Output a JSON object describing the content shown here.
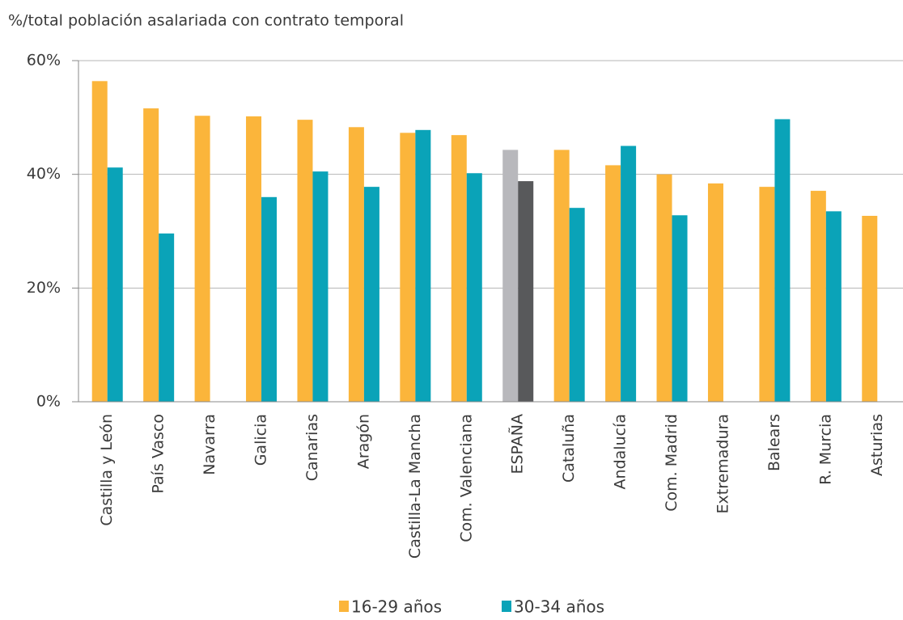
{
  "chart_data": {
    "type": "bar",
    "y_label": "%/total población asalariada con contrato temporal",
    "categories": [
      "Castilla y León",
      "País Vasco",
      "Navarra",
      "Galicia",
      "Canarias",
      "Aragón",
      "Castilla-La Mancha",
      "Com. Valenciana",
      "ESPAÑA",
      "Cataluña",
      "Andalucía",
      "Com. Madrid",
      "Extremadura",
      "Balears",
      "R. Murcia",
      "Asturias"
    ],
    "series": [
      {
        "name": "16-29 años",
        "color": "#fbb53b",
        "values": [
          56.4,
          51.6,
          50.3,
          50.2,
          49.6,
          48.3,
          47.3,
          46.9,
          44.3,
          44.3,
          41.6,
          40.0,
          38.4,
          37.8,
          37.1,
          32.7
        ],
        "colors": [
          "#fbb53b",
          "#fbb53b",
          "#fbb53b",
          "#fbb53b",
          "#fbb53b",
          "#fbb53b",
          "#fbb53b",
          "#fbb53b",
          "#b8b8bc",
          "#fbb53b",
          "#fbb53b",
          "#fbb53b",
          "#fbb53b",
          "#fbb53b",
          "#fbb53b",
          "#fbb53b"
        ]
      },
      {
        "name": "30-34 años",
        "color": "#0aa3b8",
        "values": [
          41.2,
          29.6,
          null,
          36.0,
          40.5,
          37.8,
          47.8,
          40.2,
          38.8,
          34.1,
          45.0,
          32.8,
          null,
          49.7,
          33.5,
          null
        ],
        "colors": [
          "#0aa3b8",
          "#0aa3b8",
          "#0aa3b8",
          "#0aa3b8",
          "#0aa3b8",
          "#0aa3b8",
          "#0aa3b8",
          "#0aa3b8",
          "#58595b",
          "#0aa3b8",
          "#0aa3b8",
          "#0aa3b8",
          "#0aa3b8",
          "#0aa3b8",
          "#0aa3b8",
          "#0aa3b8"
        ]
      }
    ],
    "ylim": [
      0,
      60
    ],
    "yticks": [
      {
        "value": 0,
        "label": "0%"
      },
      {
        "value": 20,
        "label": "20%"
      },
      {
        "value": 40,
        "label": "40%"
      },
      {
        "value": 60,
        "label": "60%"
      }
    ],
    "grid": true,
    "legend": "bottom"
  }
}
